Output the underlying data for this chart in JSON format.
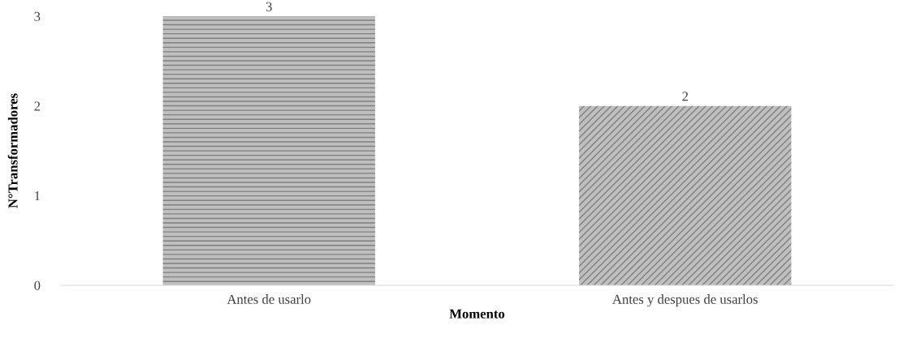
{
  "chart_data": {
    "type": "bar",
    "xlabel": "Momento",
    "ylabel": "N°Transformadores",
    "categories": [
      "Antes de usarlo",
      "Antes y despues de usarlos"
    ],
    "values": [
      3,
      2
    ],
    "colors": [
      "#bfbfbf",
      "#bfbfbf"
    ],
    "ylim": [
      0,
      3
    ],
    "yticks": [
      0,
      1,
      2,
      3
    ],
    "grid": false,
    "data_labels": true
  }
}
